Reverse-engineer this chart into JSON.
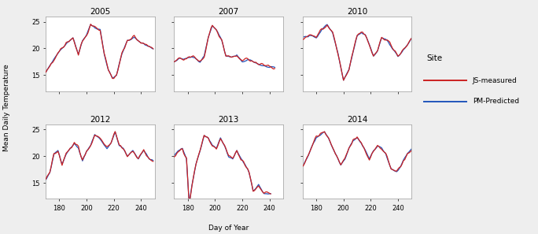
{
  "years": [
    "2005",
    "2007",
    "2010",
    "2012",
    "2013",
    "2014"
  ],
  "x_range": [
    170,
    250
  ],
  "x_ticks": [
    180,
    200,
    220,
    240
  ],
  "y_ticks": [
    15,
    20,
    25
  ],
  "ylabel": "Mean Daily Temperature",
  "xlabel": "Day of Year",
  "legend_title": "Site",
  "legend_entries": [
    "JS-measured",
    "PM-Predicted"
  ],
  "color_js": "#cc2222",
  "color_pm": "#2255bb",
  "line_width": 0.9,
  "bg_color": "#eeeeee",
  "panel_bg": "#ffffff",
  "title_fontsize": 7.5,
  "axis_fontsize": 6.5,
  "legend_fontsize": 7.5
}
